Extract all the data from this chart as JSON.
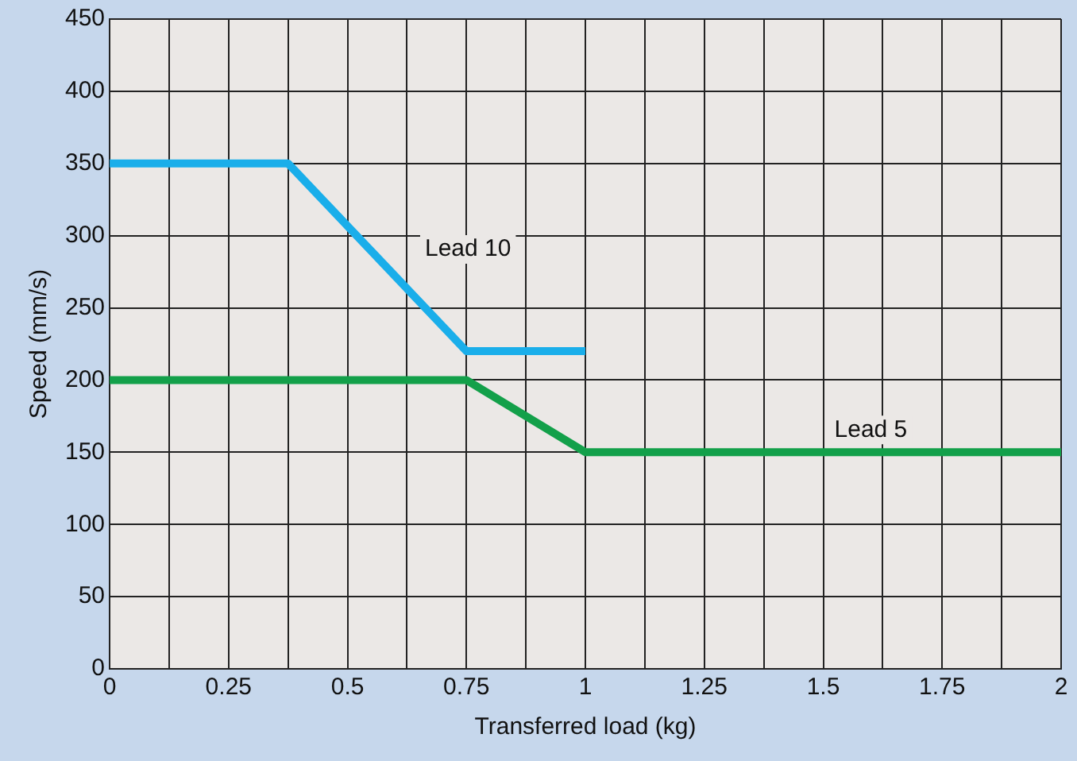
{
  "chart_data": {
    "type": "line",
    "xlabel": "Transferred load (kg)",
    "ylabel": "Speed (mm/s)",
    "series": [
      {
        "name": "Lead 10",
        "color": "#1aaeea",
        "x": [
          0,
          0.375,
          0.75,
          1
        ],
        "values": [
          350,
          350,
          220,
          220
        ]
      },
      {
        "name": "Lead 5",
        "color": "#13a04a",
        "x": [
          0,
          0.75,
          1,
          2
        ],
        "values": [
          200,
          200,
          150,
          150
        ]
      }
    ],
    "xlim": [
      0,
      2
    ],
    "xticks": [
      0,
      {
        "value": 0.125,
        "label": null
      },
      0.25,
      {
        "value": 0.375,
        "label": null
      },
      0.5,
      {
        "value": 0.625,
        "label": null
      },
      0.75,
      {
        "value": 0.875,
        "label": null
      },
      1,
      {
        "value": 1.125,
        "label": null
      },
      1.25,
      {
        "value": 1.375,
        "label": null
      },
      1.5,
      {
        "value": 1.625,
        "label": null
      },
      1.75,
      {
        "value": 1.875,
        "label": null
      },
      2
    ],
    "ylim": [
      0,
      450
    ],
    "yticks": [
      0,
      50,
      100,
      150,
      200,
      250,
      300,
      350,
      400,
      450
    ],
    "grid": true,
    "legend": false,
    "marker": "none",
    "line_style": "solid"
  }
}
